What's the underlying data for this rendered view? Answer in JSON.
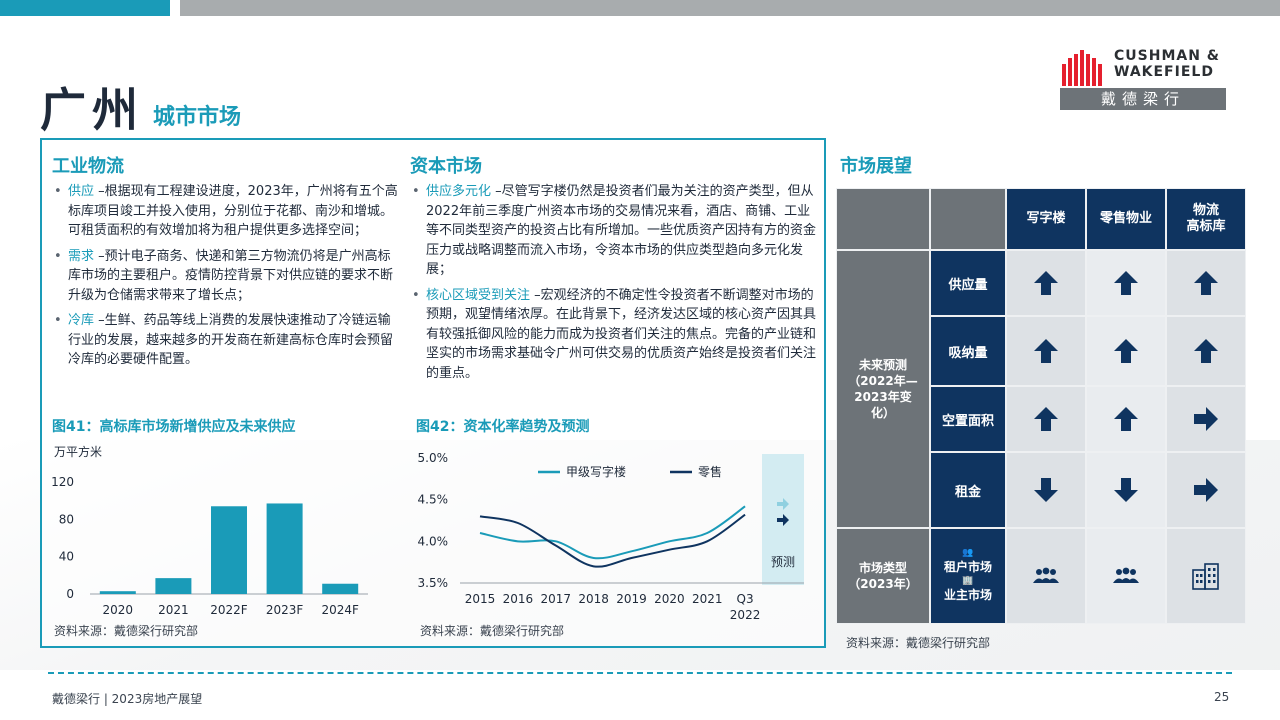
{
  "header": {
    "title_main": "广州",
    "title_sub": "城市市场",
    "logo_text_line1": "CUSHMAN &",
    "logo_text_line2": "WAKEFIELD",
    "logo_cn": "戴德梁行",
    "colors": {
      "accent": "#1a9bb8",
      "navy": "#0f3460",
      "gray": "#6d7378"
    }
  },
  "industrial": {
    "title": "工业物流",
    "bullets": [
      {
        "kw": "供应",
        "text": " –根据现有工程建设进度，2023年，广州将有五个高标库项目竣工并投入使用，分别位于花都、南沙和增城。可租赁面积的有效增加将为租户提供更多选择空间；"
      },
      {
        "kw": "需求",
        "text": " –预计电子商务、快递和第三方物流仍将是广州高标库市场的主要租户。疫情防控背景下对供应链的要求不断升级为仓储需求带来了增长点；"
      },
      {
        "kw": "冷库",
        "text": " –生鲜、药品等线上消费的发展快速推动了冷链运输行业的发展，越来越多的开发商在新建高标仓库时会预留冷库的必要硬件配置。"
      }
    ]
  },
  "capital": {
    "title": "资本市场",
    "bullets": [
      {
        "kw": "供应多元化",
        "text": " –尽管写字楼仍然是投资者们最为关注的资产类型，但从2022年前三季度广州资本市场的交易情况来看，酒店、商铺、工业等不同类型资产的投资占比有所增加。一些优质资产因持有方的资金压力或战略调整而流入市场，令资本市场的供应类型趋向多元化发展；"
      },
      {
        "kw": "核心区域受到关注",
        "text": " –宏观经济的不确定性令投资者不断调整对市场的预期，观望情绪浓厚。在此背景下，经济发达区域的核心资产因其具有较强抵御风险的能力而成为投资者们关注的焦点。完备的产业链和坚实的市场需求基础令广州可供交易的优质资产始终是投资者们关注的重点。"
      }
    ]
  },
  "figures": {
    "fig41_title": "图41：高标库市场新增供应及未来供应",
    "fig42_title": "图42：资本化率趋势及预测",
    "source": "资料来源：戴德梁行研究部"
  },
  "chart_data": [
    {
      "type": "bar",
      "title": "图41：高标库市场新增供应及未来供应",
      "ylabel": "万平方米",
      "categories": [
        "2020",
        "2021",
        "2022F",
        "2023F",
        "2024F"
      ],
      "values": [
        3,
        17,
        94,
        97,
        11
      ],
      "ylim": [
        0,
        120
      ],
      "yticks": [
        "0",
        "40",
        "80",
        "120"
      ],
      "grid": false,
      "color": "#1a9bb8"
    },
    {
      "type": "line",
      "title": "图42：资本化率趋势及预测",
      "x": [
        "2015",
        "2016",
        "2017",
        "2018",
        "2019",
        "2020",
        "2021",
        "Q3 2022"
      ],
      "ylim": [
        3.5,
        5.0
      ],
      "yticks": [
        "3.5%",
        "4.0%",
        "4.5%",
        "5.0%"
      ],
      "legend": "top",
      "forecast_label": "预测",
      "series": [
        {
          "name": "甲级写字楼",
          "color": "#1a9bb8",
          "values": [
            4.1,
            4.0,
            4.0,
            3.8,
            3.88,
            4.0,
            4.1,
            4.42
          ]
        },
        {
          "name": "零售",
          "color": "#0f3460",
          "values": [
            4.3,
            4.22,
            3.95,
            3.7,
            3.8,
            3.9,
            4.0,
            4.32
          ]
        }
      ]
    }
  ],
  "outlook": {
    "title": "市场展望",
    "columns": [
      "写字楼",
      "零售物业",
      "物流\n高标库"
    ],
    "group_forecast": "未来预测\n（2022年—\n2023年变\n化）",
    "rows": [
      {
        "label": "供应量",
        "values": [
          "up",
          "up",
          "up"
        ]
      },
      {
        "label": "吸纳量",
        "values": [
          "up",
          "up",
          "up"
        ]
      },
      {
        "label": "空置面积",
        "values": [
          "up",
          "up",
          "flat"
        ]
      },
      {
        "label": "租金",
        "values": [
          "down",
          "down",
          "flat"
        ]
      }
    ],
    "group_type": "市场类型\n（2023年）",
    "type_legend_tenant": "租户市场",
    "type_legend_landlord": "业主市场",
    "type_values": [
      "tenant-icon",
      "tenant-icon",
      "landlord-icon"
    ],
    "source": "资料来源：戴德梁行研究部"
  },
  "footer": {
    "left": "戴德梁行 | 2023房地产展望",
    "page": "25"
  }
}
